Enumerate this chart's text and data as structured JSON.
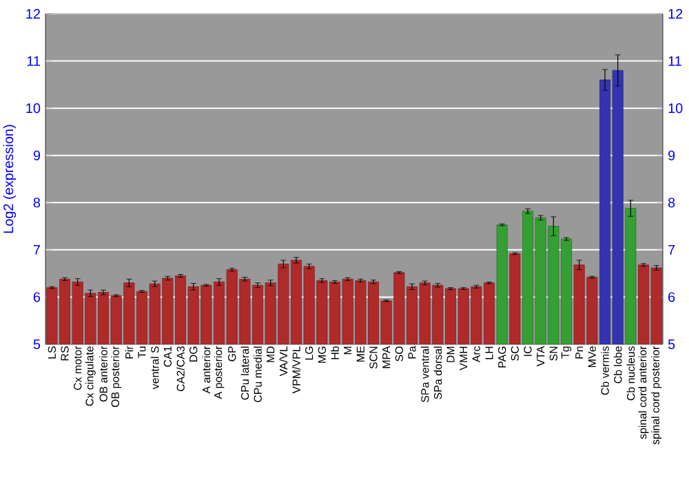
{
  "chart_data": {
    "type": "bar",
    "ylabel": "Log2 (expression)",
    "categories": [
      "LS",
      "RS",
      "Cx motor",
      "Cx cingulate",
      "OB anterior",
      "OB posterior",
      "Pir",
      "Tu",
      "ventral S",
      "CA1",
      "CA2/CA3",
      "DG",
      "A anterior",
      "A posterior",
      "GP",
      "CPu lateral",
      "CPu medial",
      "MD",
      "VA/VL",
      "VPM/VPL",
      "LG",
      "MG",
      "Hb",
      "M",
      "ME",
      "SCN",
      "MPA",
      "SO",
      "Pa",
      "SPa ventral",
      "SPa dorsal",
      "DM",
      "VMH",
      "Arc",
      "LH",
      "PAG",
      "SC",
      "IC",
      "VTA",
      "SN",
      "Tg",
      "Pn",
      "MVe",
      "Cb vermis",
      "Cb lobe",
      "Cb nucleus",
      "spinal cord anterior",
      "spinal cord posterior"
    ],
    "values": [
      6.2,
      6.38,
      6.32,
      6.08,
      6.1,
      6.03,
      6.3,
      6.12,
      6.28,
      6.4,
      6.45,
      6.22,
      6.25,
      6.32,
      6.58,
      6.38,
      6.25,
      6.3,
      6.7,
      6.78,
      6.65,
      6.35,
      6.32,
      6.38,
      6.35,
      6.32,
      5.92,
      6.52,
      6.22,
      6.3,
      6.25,
      6.18,
      6.18,
      6.22,
      6.3,
      7.53,
      6.92,
      7.82,
      7.68,
      7.5,
      7.23,
      6.68,
      6.42,
      10.6,
      10.8,
      7.88,
      6.68,
      6.62
    ],
    "errors": [
      0.02,
      0.03,
      0.07,
      0.07,
      0.05,
      0.02,
      0.08,
      0.02,
      0.06,
      0.04,
      0.03,
      0.07,
      0.02,
      0.07,
      0.03,
      0.04,
      0.05,
      0.06,
      0.08,
      0.06,
      0.05,
      0.04,
      0.03,
      0.03,
      0.03,
      0.04,
      0.02,
      0.02,
      0.06,
      0.04,
      0.04,
      0.02,
      0.02,
      0.03,
      0.02,
      0.02,
      0.02,
      0.05,
      0.05,
      0.2,
      0.03,
      0.1,
      0.02,
      0.22,
      0.33,
      0.17,
      0.03,
      0.05
    ],
    "colors": [
      "#b02a2a",
      "#b02a2a",
      "#b02a2a",
      "#b02a2a",
      "#b02a2a",
      "#b02a2a",
      "#b02a2a",
      "#b02a2a",
      "#b02a2a",
      "#b02a2a",
      "#b02a2a",
      "#b02a2a",
      "#b02a2a",
      "#b02a2a",
      "#b02a2a",
      "#b02a2a",
      "#b02a2a",
      "#b02a2a",
      "#b02a2a",
      "#b02a2a",
      "#b02a2a",
      "#b02a2a",
      "#b02a2a",
      "#b02a2a",
      "#b02a2a",
      "#b02a2a",
      "#b02a2a",
      "#b02a2a",
      "#b02a2a",
      "#b02a2a",
      "#b02a2a",
      "#b02a2a",
      "#b02a2a",
      "#b02a2a",
      "#b02a2a",
      "#34a034",
      "#b02a2a",
      "#34a034",
      "#34a034",
      "#34a034",
      "#34a034",
      "#b02a2a",
      "#b02a2a",
      "#3434b0",
      "#3434b0",
      "#34a034",
      "#b02a2a",
      "#b02a2a"
    ],
    "ylim": [
      5,
      12
    ],
    "yticks": [
      5,
      6,
      7,
      8,
      9,
      10,
      11,
      12
    ],
    "y2lim": [
      5,
      12
    ],
    "y2ticks": [
      5,
      6,
      7,
      8,
      9,
      10,
      11,
      12
    ],
    "grid": "y"
  }
}
